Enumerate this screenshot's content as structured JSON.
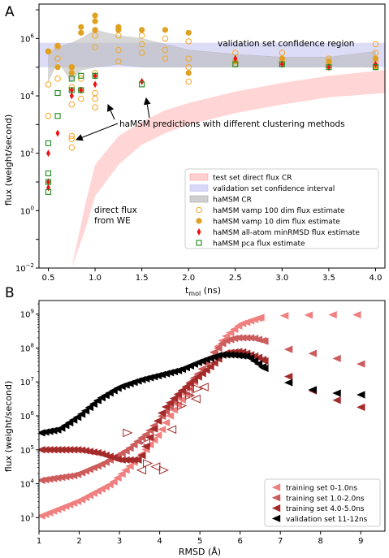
{
  "chart_data": [
    {
      "panel": "A",
      "type": "scatter",
      "xlabel_main": "t",
      "xlabel_sub": "mol",
      "xlabel_unit": " (ns)",
      "ylabel": "flux (weight/second)",
      "y_scale": "log",
      "xlim": [
        0.4,
        4.1
      ],
      "ylim_log10": [
        -2,
        7.2
      ],
      "x_ticks": [
        0.5,
        1.0,
        1.5,
        2.0,
        2.5,
        3.0,
        3.5,
        4.0
      ],
      "x_tick_labels": [
        "0.5",
        "1.0",
        "1.5",
        "2.0",
        "2.5",
        "3.0",
        "3.5",
        "4.0"
      ],
      "y_ticks_log10": [
        -2,
        0,
        2,
        4,
        6
      ],
      "y_tick_labels": [
        [
          "10",
          "−2"
        ],
        [
          "10",
          "0"
        ],
        [
          "10",
          "2"
        ],
        [
          "10",
          "4"
        ],
        [
          "10",
          "6"
        ]
      ],
      "annotations": {
        "validation_region": "validation set confidence region",
        "predictions": "haMSM predictions with different clustering methods",
        "direct_line1": "direct flux",
        "direct_line2": "from WE"
      },
      "test_set_cr": {
        "x": [
          0.75,
          0.9,
          1.0,
          1.25,
          1.5,
          1.75,
          2.0,
          2.5,
          3.0,
          3.5,
          4.1
        ],
        "lo": [
          -2,
          -0.6,
          0.5,
          1.6,
          2.3,
          2.7,
          3.0,
          3.4,
          3.7,
          3.95,
          4.1
        ],
        "hi": [
          -2,
          0.3,
          1.6,
          2.6,
          3.1,
          3.5,
          3.75,
          4.15,
          4.45,
          4.7,
          4.9
        ]
      },
      "validation_ci": {
        "lo_log10": 5.0,
        "hi_log10": 5.85
      },
      "hamsm_cr": {
        "x": [
          0.5,
          0.6,
          0.75,
          0.85,
          1.0,
          1.25,
          1.5,
          1.75,
          2.0,
          2.5,
          3.0,
          3.5,
          4.0
        ],
        "lo": [
          4.5,
          5.2,
          4.5,
          4.9,
          5.0,
          5.1,
          5.0,
          5.0,
          5.0,
          5.0,
          5.0,
          5.0,
          5.0
        ],
        "hi": [
          5.5,
          5.7,
          5.85,
          6.0,
          6.3,
          6.1,
          6.0,
          5.8,
          5.6,
          5.45,
          5.35,
          5.35,
          5.55
        ]
      },
      "series": [
        {
          "name": "haMSM vamp 100 dim flux estimate",
          "marker": "circle-open",
          "color": "#f5a623",
          "points": [
            [
              0.5,
              5.55
            ],
            [
              0.5,
              4.4
            ],
            [
              0.5,
              3.3
            ],
            [
              0.6,
              5.7
            ],
            [
              0.6,
              5.3
            ],
            [
              0.6,
              4.6
            ],
            [
              0.75,
              2.2
            ],
            [
              0.75,
              2.5
            ],
            [
              0.75,
              2.6
            ],
            [
              0.75,
              4.3
            ],
            [
              0.75,
              3.7
            ],
            [
              0.75,
              5.0
            ],
            [
              0.85,
              3.9
            ],
            [
              0.85,
              4.2
            ],
            [
              0.85,
              4.6
            ],
            [
              1.0,
              3.6
            ],
            [
              1.0,
              3.9
            ],
            [
              1.0,
              4.1
            ],
            [
              1.0,
              4.8
            ],
            [
              1.0,
              5.7
            ],
            [
              1.0,
              6.1
            ],
            [
              1.25,
              5.2
            ],
            [
              1.25,
              5.6
            ],
            [
              1.25,
              6.1
            ],
            [
              1.5,
              5.5
            ],
            [
              1.5,
              5.8
            ],
            [
              1.5,
              6.1
            ],
            [
              1.75,
              5.3
            ],
            [
              1.75,
              5.6
            ],
            [
              1.75,
              6.0
            ],
            [
              2.0,
              4.5
            ],
            [
              2.0,
              5.0
            ],
            [
              2.0,
              5.3
            ],
            [
              2.0,
              5.9
            ],
            [
              2.5,
              5.1
            ],
            [
              2.5,
              5.5
            ],
            [
              3.0,
              5.2
            ],
            [
              3.0,
              5.5
            ],
            [
              3.5,
              5.1
            ],
            [
              3.5,
              5.3
            ],
            [
              4.0,
              5.2
            ],
            [
              4.0,
              5.5
            ],
            [
              4.0,
              5.8
            ]
          ]
        },
        {
          "name": "haMSM vamp 10 dim flux estimate",
          "marker": "circle",
          "color": "#e0a020",
          "points": [
            [
              0.5,
              5.55
            ],
            [
              0.6,
              5.75
            ],
            [
              0.6,
              5.0
            ],
            [
              0.75,
              4.8
            ],
            [
              0.75,
              5.0
            ],
            [
              0.85,
              6.2
            ],
            [
              0.85,
              6.4
            ],
            [
              1.0,
              6.3
            ],
            [
              1.0,
              6.6
            ],
            [
              1.0,
              6.8
            ],
            [
              1.25,
              6.3
            ],
            [
              1.25,
              6.4
            ],
            [
              1.5,
              6.3
            ],
            [
              1.75,
              6.3
            ],
            [
              2.0,
              6.2
            ],
            [
              2.0,
              4.8
            ],
            [
              2.5,
              5.2
            ],
            [
              3.0,
              5.3
            ],
            [
              3.5,
              5.2
            ],
            [
              4.0,
              5.0
            ],
            [
              4.0,
              5.3
            ]
          ]
        },
        {
          "name": "haMSM all-atom minRMSD flux estimate",
          "marker": "diamond",
          "color": "#ee1111",
          "points": [
            [
              0.5,
              2.0
            ],
            [
              0.5,
              1.0
            ],
            [
              0.5,
              0.8
            ],
            [
              0.6,
              2.7
            ],
            [
              0.75,
              4.0
            ],
            [
              0.75,
              4.2
            ],
            [
              0.85,
              4.2
            ],
            [
              1.0,
              4.4
            ],
            [
              1.0,
              4.7
            ],
            [
              1.5,
              4.5
            ],
            [
              2.5,
              5.3
            ],
            [
              3.0,
              5.1
            ],
            [
              3.5,
              5.0
            ],
            [
              4.0,
              5.1
            ]
          ]
        },
        {
          "name": "haMSM pca flux estimate",
          "marker": "square-open",
          "color": "#1a8a1a",
          "points": [
            [
              0.5,
              2.35
            ],
            [
              0.5,
              1.3
            ],
            [
              0.5,
              1.0
            ],
            [
              0.5,
              0.65
            ],
            [
              0.6,
              3.3
            ],
            [
              0.6,
              4.1
            ],
            [
              0.75,
              4.6
            ],
            [
              0.75,
              4.2
            ],
            [
              0.85,
              4.7
            ],
            [
              0.85,
              4.2
            ],
            [
              1.0,
              4.7
            ],
            [
              1.5,
              4.4
            ],
            [
              2.5,
              5.1
            ],
            [
              3.0,
              5.1
            ],
            [
              3.5,
              5.0
            ],
            [
              4.0,
              5.0
            ]
          ]
        }
      ],
      "legend": [
        {
          "label": "test set direct flux CR",
          "kind": "patch",
          "fill": "#ffd0d0",
          "stroke": "#f4a0a0"
        },
        {
          "label": "validation set confidence interval",
          "kind": "patch",
          "fill": "#d8d8f6",
          "stroke": "#c4c4f0"
        },
        {
          "label": "haMSM CR",
          "kind": "patch",
          "fill": "#cfcfcf",
          "stroke": "#a9a9a9"
        },
        {
          "label": "haMSM vamp 100 dim flux estimate",
          "kind": "marker",
          "ref": 0
        },
        {
          "label": "haMSM vamp 10 dim flux estimate",
          "kind": "marker",
          "ref": 1
        },
        {
          "label": "haMSM all-atom minRMSD flux estimate",
          "kind": "marker",
          "ref": 2
        },
        {
          "label": "haMSM pca flux estimate",
          "kind": "marker",
          "ref": 3
        }
      ],
      "legend_placement": "lower right",
      "grid": false
    },
    {
      "panel": "B",
      "type": "scatter",
      "xlabel": "RMSD (Å)",
      "ylabel": "flux (weight/second)",
      "y_scale": "log",
      "xlim": [
        1.0,
        9.6
      ],
      "ylim_log10": [
        2.6,
        9.4
      ],
      "x_ticks": [
        1,
        2,
        3,
        4,
        5,
        6,
        7,
        8,
        9
      ],
      "y_ticks_log10": [
        3,
        4,
        5,
        6,
        7,
        8,
        9
      ],
      "y_tick_labels": [
        [
          "10",
          "3"
        ],
        [
          "10",
          "4"
        ],
        [
          "10",
          "5"
        ],
        [
          "10",
          "6"
        ],
        [
          "10",
          "7"
        ],
        [
          "10",
          "8"
        ],
        [
          "10",
          "9"
        ]
      ],
      "series": [
        {
          "name": "training set 0-1.0ns",
          "color": "#f08080",
          "curve": [
            [
              1.05,
              3.05
            ],
            [
              2.0,
              3.5
            ],
            [
              2.8,
              4.0
            ],
            [
              3.5,
              4.8
            ],
            [
              4.0,
              5.5
            ],
            [
              4.3,
              6.1
            ],
            [
              4.7,
              6.7
            ],
            [
              5.0,
              7.3
            ],
            [
              5.3,
              7.8
            ],
            [
              5.6,
              8.3
            ],
            [
              6.0,
              8.7
            ],
            [
              6.5,
              8.9
            ],
            [
              7.0,
              8.95
            ],
            [
              8.0,
              8.98
            ],
            [
              9.3,
              8.98
            ]
          ],
          "sparse_from": 6.5,
          "sparse_step": 0.6,
          "dense_step": 0.1
        },
        {
          "name": "training set 1.0-2.0ns",
          "color": "#cd5c5c",
          "curve": [
            [
              1.05,
              4.1
            ],
            [
              1.9,
              4.25
            ],
            [
              2.6,
              4.6
            ],
            [
              3.2,
              5.0
            ],
            [
              3.7,
              5.5
            ],
            [
              4.2,
              6.2
            ],
            [
              4.6,
              6.8
            ],
            [
              5.0,
              7.3
            ],
            [
              5.3,
              7.8
            ],
            [
              5.6,
              8.2
            ],
            [
              5.9,
              8.3
            ],
            [
              6.3,
              8.3
            ],
            [
              6.6,
              8.2
            ],
            [
              7.0,
              8.0
            ],
            [
              8.0,
              7.8
            ],
            [
              9.3,
              7.45
            ]
          ],
          "sparse_from": 6.6,
          "sparse_step": 0.6,
          "dense_step": 0.1
        },
        {
          "name": "training set 4.0-5.0ns",
          "color": "#a52a2a",
          "curve": [
            [
              1.05,
              5.0
            ],
            [
              2.0,
              5.0
            ],
            [
              2.5,
              4.9
            ],
            [
              3.0,
              4.7
            ],
            [
              3.5,
              4.7
            ],
            [
              3.8,
              5.5
            ],
            [
              4.1,
              6.2
            ],
            [
              4.5,
              6.7
            ],
            [
              5.0,
              7.2
            ],
            [
              5.3,
              7.5
            ],
            [
              5.6,
              7.85
            ],
            [
              6.0,
              7.9
            ],
            [
              6.5,
              7.7
            ],
            [
              7.0,
              7.3
            ],
            [
              8.0,
              6.6
            ],
            [
              9.3,
              6.15
            ]
          ],
          "sparse_from": 6.6,
          "sparse_step": 0.6,
          "dense_step": 0.1
        },
        {
          "name": "validation set 11-12ns",
          "color": "#000000",
          "curve": [
            [
              1.05,
              5.5
            ],
            [
              1.5,
              5.6
            ],
            [
              2.0,
              6.0
            ],
            [
              2.5,
              6.5
            ],
            [
              3.0,
              6.85
            ],
            [
              3.5,
              7.05
            ],
            [
              4.0,
              7.2
            ],
            [
              4.5,
              7.35
            ],
            [
              5.0,
              7.6
            ],
            [
              5.5,
              7.8
            ],
            [
              5.8,
              7.8
            ],
            [
              6.2,
              7.75
            ],
            [
              6.6,
              7.4
            ],
            [
              7.0,
              7.05
            ],
            [
              8.0,
              6.7
            ],
            [
              9.3,
              6.6
            ]
          ],
          "sparse_from": 6.6,
          "sparse_step": 0.6,
          "dense_step": 0.1
        }
      ],
      "open_markers": {
        "color": "#a52a2a",
        "points": [
          [
            3.55,
            4.4
          ],
          [
            3.7,
            4.6
          ],
          [
            3.9,
            4.5
          ],
          [
            4.1,
            4.4
          ],
          [
            4.3,
            5.6
          ],
          [
            4.55,
            6.3
          ],
          [
            4.7,
            6.7
          ],
          [
            4.75,
            6.6
          ],
          [
            4.9,
            6.5
          ],
          [
            4.95,
            6.8
          ],
          [
            5.1,
            6.85
          ],
          [
            3.2,
            5.5
          ],
          [
            3.65,
            5.2
          ]
        ]
      },
      "legend_placement": "lower right",
      "grid": false
    }
  ]
}
